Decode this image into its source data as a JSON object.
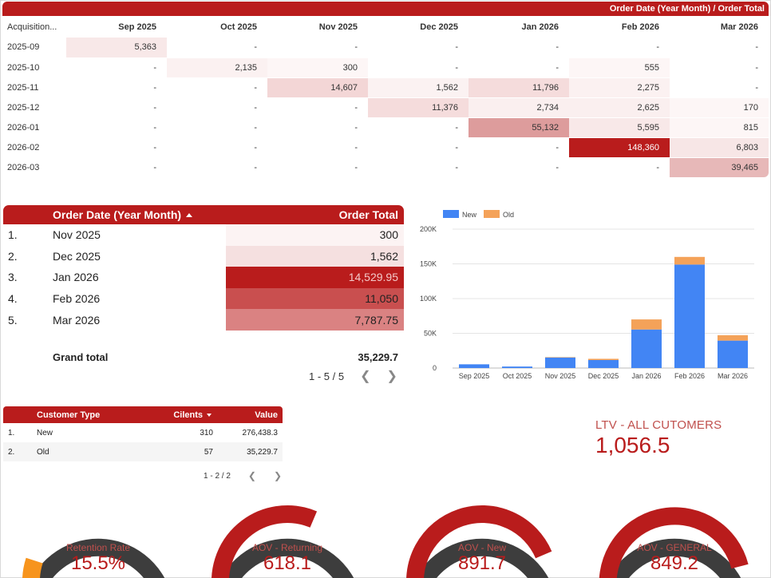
{
  "cohort": {
    "header_title": "Order Date (Year Month) / Order Total",
    "row_header": "Acquisition...",
    "columns": [
      "Sep 2025",
      "Oct 2025",
      "Nov 2025",
      "Dec 2025",
      "Jan 2026",
      "Feb 2026",
      "Mar 2026"
    ],
    "rows": [
      {
        "label": "2025-09",
        "cells": [
          "5,363",
          "-",
          "-",
          "-",
          "-",
          "-",
          "-"
        ],
        "shades": [
          "#f8e8e8",
          null,
          null,
          null,
          null,
          null,
          null
        ]
      },
      {
        "label": "2025-10",
        "cells": [
          "-",
          "2,135",
          "300",
          "-",
          "-",
          "555",
          "-"
        ],
        "shades": [
          null,
          "#fbf1f1",
          "#fdf6f6",
          null,
          null,
          "#fdf6f6",
          null
        ]
      },
      {
        "label": "2025-11",
        "cells": [
          "-",
          "-",
          "14,607",
          "1,562",
          "11,796",
          "2,275",
          "-"
        ],
        "shades": [
          null,
          null,
          "#f3d6d6",
          "#fbf2f2",
          "#f5dcdc",
          "#fbf1f1",
          null
        ]
      },
      {
        "label": "2025-12",
        "cells": [
          "-",
          "-",
          "-",
          "11,376",
          "2,734",
          "2,625",
          "170"
        ],
        "shades": [
          null,
          null,
          null,
          "#f5dcdc",
          "#faefef",
          "#faefef",
          "#fdf6f6"
        ]
      },
      {
        "label": "2026-01",
        "cells": [
          "-",
          "-",
          "-",
          "-",
          "55,132",
          "5,595",
          "815"
        ],
        "shades": [
          null,
          null,
          null,
          null,
          "#dd9c9c",
          "#f8e8e8",
          "#fdf6f6"
        ]
      },
      {
        "label": "2026-02",
        "cells": [
          "-",
          "-",
          "-",
          "-",
          "-",
          "148,360",
          "6,803"
        ],
        "shades": [
          null,
          null,
          null,
          null,
          null,
          "#b91c1c",
          "#f7e6e6"
        ]
      },
      {
        "label": "2026-03",
        "cells": [
          "-",
          "-",
          "-",
          "-",
          "-",
          "-",
          "39,465"
        ],
        "shades": [
          null,
          null,
          null,
          null,
          null,
          null,
          "#e7b8b8"
        ]
      }
    ]
  },
  "orders": {
    "col_date": "Order Date (Year Month)",
    "col_total": "Order Total",
    "rows": [
      {
        "idx": "1.",
        "date": "Nov 2025",
        "total": "300",
        "shade": "#fcf3f3",
        "light": false
      },
      {
        "idx": "2.",
        "date": "Dec 2025",
        "total": "1,562",
        "shade": "#f5e0e0",
        "light": false
      },
      {
        "idx": "3.",
        "date": "Jan 2026",
        "total": "14,529.95",
        "shade": "#b91c1c",
        "light": true
      },
      {
        "idx": "4.",
        "date": "Feb 2026",
        "total": "11,050",
        "shade": "#c94f4f",
        "light": false
      },
      {
        "idx": "5.",
        "date": "Mar 2026",
        "total": "7,787.75",
        "shade": "#da8282",
        "light": false
      }
    ],
    "grand_label": "Grand total",
    "grand_value": "35,229.7",
    "pager": "1 - 5 / 5"
  },
  "chart_data": {
    "type": "bar",
    "stacked": true,
    "categories": [
      "Sep 2025",
      "Oct 2025",
      "Nov 2025",
      "Dec 2025",
      "Jan 2026",
      "Feb 2026",
      "Mar 2026"
    ],
    "series": [
      {
        "name": "New",
        "color": "#4285f4",
        "values": [
          5363,
          2135,
          15200,
          11500,
          55500,
          149000,
          39500
        ]
      },
      {
        "name": "Old",
        "color": "#f4a259",
        "values": [
          0,
          0,
          600,
          1800,
          14500,
          11000,
          7800
        ]
      }
    ],
    "y_ticks": [
      "0",
      "50K",
      "100K",
      "150K",
      "200K"
    ],
    "ylim": [
      0,
      200000
    ],
    "legend": "top-left",
    "grid": true
  },
  "ctype": {
    "col_type": "Customer Type",
    "col_clients": "Cilents",
    "col_value": "Value",
    "rows": [
      {
        "idx": "1.",
        "type": "New",
        "clients": "310",
        "value": "276,438.3"
      },
      {
        "idx": "2.",
        "type": "Old",
        "clients": "57",
        "value": "35,229.7"
      }
    ],
    "pager": "1 - 2 / 2"
  },
  "ltv": {
    "label": "LTV - ALL CUTOMERS",
    "value": "1,056.5"
  },
  "gauges": [
    {
      "label": "Retention Rate",
      "value": "15.5%",
      "fraction": 0.155,
      "color": "#f7941d"
    },
    {
      "label": "AOV - Returning",
      "value": "618.1",
      "fraction": 0.61,
      "color": "#b91c1c"
    },
    {
      "label": "AOV - New",
      "value": "891.7",
      "fraction": 0.82,
      "color": "#b91c1c"
    },
    {
      "label": "AOV - GENERAL",
      "value": "849.2",
      "fraction": 0.87,
      "color": "#b91c1c"
    }
  ]
}
